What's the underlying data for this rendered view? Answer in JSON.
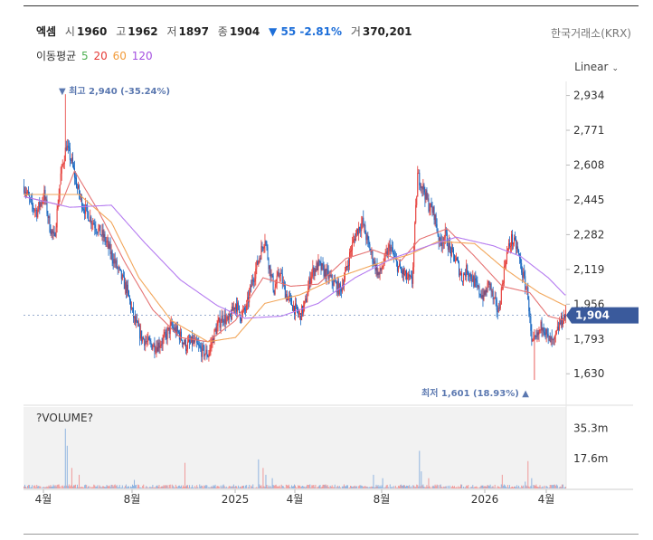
{
  "header": {
    "stock_name": "엑셈",
    "open_label": "시",
    "open": "1960",
    "high_label": "고",
    "high": "1962",
    "low_label": "저",
    "low": "1897",
    "close_label": "종",
    "close": "1904",
    "change_arrow": "▼",
    "change": "55",
    "change_pct": "-2.81%",
    "volume_label": "거",
    "volume": "370,201",
    "exchange": "한국거래소(KRX)"
  },
  "ma": {
    "label": "이동평균",
    "periods": [
      {
        "text": "5",
        "color": "#4caf50"
      },
      {
        "text": "20",
        "color": "#e53935"
      },
      {
        "text": "60",
        "color": "#f29b3a"
      },
      {
        "text": "120",
        "color": "#a44fe0"
      }
    ]
  },
  "scale_mode": "Linear",
  "scale_caret": "⌄",
  "chart_data": {
    "type": "candlestick",
    "price_axis": {
      "ticks": [
        "2,934",
        "2,771",
        "2,608",
        "2,445",
        "2,282",
        "2,119",
        "1,956",
        "1,793",
        "1,630"
      ],
      "range": [
        1580,
        3000
      ]
    },
    "volume_axis": {
      "title": "?VOLUME?",
      "ticks": [
        "35.3m",
        "17.6m"
      ],
      "range": [
        0,
        45
      ]
    },
    "x_ticks": [
      "4월",
      "8월",
      "2025",
      "4월",
      "8월",
      "2026",
      "4월"
    ],
    "current_price_label": "1,904",
    "current_price": 1904,
    "high_annotation": {
      "text": "▼ 최고 2,940 (-35.24%)",
      "value": 2940
    },
    "low_annotation": {
      "text": "최저 1,601 (18.93%) ▲",
      "value": 1601
    },
    "price_keypoints": [
      [
        0,
        2510
      ],
      [
        8,
        2420
      ],
      [
        14,
        2390
      ],
      [
        22,
        2470
      ],
      [
        28,
        2320
      ],
      [
        33,
        2260
      ],
      [
        40,
        2560
      ],
      [
        46,
        2700
      ],
      [
        52,
        2620
      ],
      [
        58,
        2500
      ],
      [
        64,
        2420
      ],
      [
        72,
        2360
      ],
      [
        80,
        2310
      ],
      [
        88,
        2260
      ],
      [
        96,
        2180
      ],
      [
        104,
        2100
      ],
      [
        112,
        2020
      ],
      [
        120,
        1880
      ],
      [
        128,
        1800
      ],
      [
        136,
        1770
      ],
      [
        144,
        1760
      ],
      [
        152,
        1790
      ],
      [
        160,
        1850
      ],
      [
        168,
        1820
      ],
      [
        176,
        1760
      ],
      [
        184,
        1780
      ],
      [
        192,
        1740
      ],
      [
        200,
        1720
      ],
      [
        208,
        1830
      ],
      [
        216,
        1900
      ],
      [
        222,
        1870
      ],
      [
        230,
        1960
      ],
      [
        236,
        1900
      ],
      [
        242,
        1940
      ],
      [
        248,
        2060
      ],
      [
        256,
        2180
      ],
      [
        262,
        2270
      ],
      [
        266,
        2150
      ],
      [
        272,
        2020
      ],
      [
        278,
        2110
      ],
      [
        284,
        2010
      ],
      [
        292,
        1950
      ],
      [
        300,
        1900
      ],
      [
        306,
        1960
      ],
      [
        312,
        2100
      ],
      [
        320,
        2140
      ],
      [
        328,
        2100
      ],
      [
        336,
        2060
      ],
      [
        344,
        2020
      ],
      [
        350,
        2110
      ],
      [
        356,
        2220
      ],
      [
        362,
        2300
      ],
      [
        368,
        2340
      ],
      [
        374,
        2240
      ],
      [
        380,
        2160
      ],
      [
        386,
        2090
      ],
      [
        392,
        2160
      ],
      [
        398,
        2230
      ],
      [
        404,
        2150
      ],
      [
        410,
        2110
      ],
      [
        416,
        2080
      ],
      [
        422,
        2060
      ],
      [
        428,
        2560
      ],
      [
        434,
        2500
      ],
      [
        440,
        2420
      ],
      [
        446,
        2380
      ],
      [
        452,
        2240
      ],
      [
        458,
        2280
      ],
      [
        464,
        2200
      ],
      [
        470,
        2160
      ],
      [
        476,
        2080
      ],
      [
        482,
        2120
      ],
      [
        488,
        2070
      ],
      [
        494,
        2020
      ],
      [
        500,
        1990
      ],
      [
        506,
        2060
      ],
      [
        510,
        1980
      ],
      [
        516,
        1920
      ],
      [
        524,
        2180
      ],
      [
        530,
        2260
      ],
      [
        536,
        2220
      ],
      [
        542,
        2100
      ],
      [
        548,
        2000
      ],
      [
        552,
        1760
      ],
      [
        558,
        1800
      ],
      [
        564,
        1870
      ],
      [
        570,
        1790
      ],
      [
        576,
        1770
      ],
      [
        582,
        1860
      ],
      [
        588,
        1904
      ]
    ],
    "ma_keypoints": {
      "ma20": [
        [
          0,
          2460
        ],
        [
          40,
          2420
        ],
        [
          55,
          2580
        ],
        [
          80,
          2400
        ],
        [
          110,
          2150
        ],
        [
          140,
          1930
        ],
        [
          170,
          1800
        ],
        [
          200,
          1780
        ],
        [
          230,
          1880
        ],
        [
          260,
          2080
        ],
        [
          290,
          2040
        ],
        [
          320,
          2050
        ],
        [
          350,
          2170
        ],
        [
          380,
          2210
        ],
        [
          410,
          2160
        ],
        [
          430,
          2260
        ],
        [
          460,
          2310
        ],
        [
          490,
          2180
        ],
        [
          520,
          2040
        ],
        [
          550,
          2010
        ],
        [
          570,
          1900
        ],
        [
          588,
          1880
        ]
      ],
      "ma60": [
        [
          0,
          2470
        ],
        [
          60,
          2470
        ],
        [
          95,
          2340
        ],
        [
          125,
          2080
        ],
        [
          160,
          1880
        ],
        [
          200,
          1780
        ],
        [
          230,
          1800
        ],
        [
          262,
          1960
        ],
        [
          300,
          2000
        ],
        [
          340,
          2080
        ],
        [
          380,
          2140
        ],
        [
          420,
          2190
        ],
        [
          450,
          2250
        ],
        [
          490,
          2240
        ],
        [
          520,
          2130
        ],
        [
          560,
          2010
        ],
        [
          588,
          1950
        ]
      ],
      "ma120": [
        [
          0,
          2460
        ],
        [
          50,
          2410
        ],
        [
          95,
          2420
        ],
        [
          130,
          2250
        ],
        [
          170,
          2070
        ],
        [
          210,
          1950
        ],
        [
          240,
          1890
        ],
        [
          280,
          1900
        ],
        [
          320,
          1960
        ],
        [
          360,
          2080
        ],
        [
          400,
          2170
        ],
        [
          440,
          2230
        ],
        [
          470,
          2270
        ],
        [
          510,
          2230
        ],
        [
          540,
          2180
        ],
        [
          570,
          2080
        ],
        [
          588,
          2000
        ]
      ]
    },
    "volume_spikes": [
      [
        45,
        35
      ],
      [
        47,
        25
      ],
      [
        52,
        12
      ],
      [
        60,
        8
      ],
      [
        120,
        5
      ],
      [
        175,
        15
      ],
      [
        255,
        17
      ],
      [
        260,
        12
      ],
      [
        263,
        8
      ],
      [
        270,
        6
      ],
      [
        380,
        8
      ],
      [
        390,
        6
      ],
      [
        430,
        22
      ],
      [
        432,
        10
      ],
      [
        440,
        6
      ],
      [
        520,
        8
      ],
      [
        545,
        4
      ],
      [
        548,
        16
      ],
      [
        552,
        6
      ]
    ]
  }
}
